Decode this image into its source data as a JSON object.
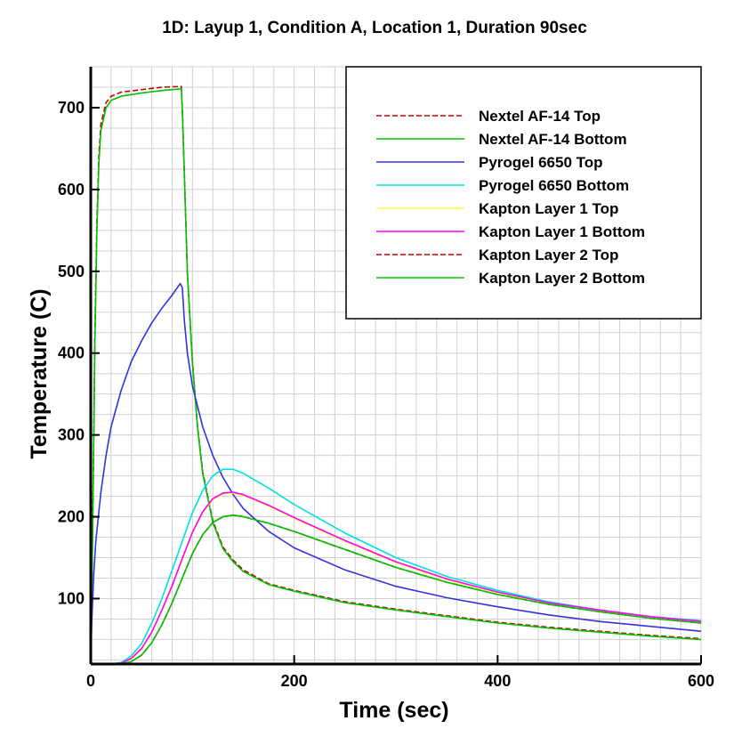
{
  "chart_data": {
    "type": "line",
    "title": "1D: Layup 1, Condition A, Location 1, Duration 90sec",
    "xlabel": "Time (sec)",
    "ylabel": "Temperature (C)",
    "xlim": [
      0,
      600
    ],
    "ylim": [
      20,
      750
    ],
    "xticks": [
      0,
      200,
      400,
      600
    ],
    "yticks": [
      100,
      200,
      300,
      400,
      500,
      600,
      700
    ],
    "x_minor_step": 20,
    "y_minor_step": 25,
    "grid": true,
    "legend_position": "top-right",
    "series": [
      {
        "name": "Nextel AF-14 Top",
        "color": "#c00000",
        "dash": "6,3",
        "points": [
          [
            0,
            20
          ],
          [
            2,
            200
          ],
          [
            4,
            420
          ],
          [
            6,
            560
          ],
          [
            8,
            640
          ],
          [
            10,
            680
          ],
          [
            15,
            706
          ],
          [
            20,
            714
          ],
          [
            30,
            719
          ],
          [
            50,
            722
          ],
          [
            70,
            725
          ],
          [
            89,
            726
          ],
          [
            90,
            700
          ],
          [
            92,
            620
          ],
          [
            95,
            500
          ],
          [
            100,
            390
          ],
          [
            105,
            310
          ],
          [
            110,
            255
          ],
          [
            120,
            195
          ],
          [
            130,
            163
          ],
          [
            140,
            147
          ],
          [
            150,
            135
          ],
          [
            175,
            118
          ],
          [
            200,
            110
          ],
          [
            250,
            96
          ],
          [
            300,
            87
          ],
          [
            350,
            79
          ],
          [
            400,
            71
          ],
          [
            450,
            65
          ],
          [
            500,
            60
          ],
          [
            550,
            55
          ],
          [
            600,
            51
          ]
        ]
      },
      {
        "name": "Nextel AF-14 Bottom",
        "color": "#00c000",
        "dash": "",
        "points": [
          [
            0,
            20
          ],
          [
            2,
            190
          ],
          [
            4,
            410
          ],
          [
            6,
            550
          ],
          [
            8,
            632
          ],
          [
            10,
            672
          ],
          [
            15,
            700
          ],
          [
            20,
            709
          ],
          [
            30,
            714
          ],
          [
            50,
            718
          ],
          [
            70,
            721
          ],
          [
            89,
            723
          ],
          [
            90,
            698
          ],
          [
            92,
            618
          ],
          [
            95,
            498
          ],
          [
            100,
            388
          ],
          [
            105,
            308
          ],
          [
            110,
            253
          ],
          [
            120,
            193
          ],
          [
            130,
            161
          ],
          [
            140,
            145
          ],
          [
            150,
            133
          ],
          [
            175,
            117
          ],
          [
            200,
            109
          ],
          [
            250,
            95
          ],
          [
            300,
            86
          ],
          [
            350,
            78
          ],
          [
            400,
            70
          ],
          [
            450,
            64
          ],
          [
            500,
            59
          ],
          [
            550,
            54
          ],
          [
            600,
            50
          ]
        ]
      },
      {
        "name": "Pyrogel 6650 Top",
        "color": "#3333dd",
        "dash": "",
        "points": [
          [
            0,
            20
          ],
          [
            1,
            70
          ],
          [
            3,
            130
          ],
          [
            5,
            170
          ],
          [
            10,
            230
          ],
          [
            15,
            275
          ],
          [
            20,
            310
          ],
          [
            30,
            355
          ],
          [
            40,
            390
          ],
          [
            50,
            415
          ],
          [
            60,
            437
          ],
          [
            70,
            455
          ],
          [
            80,
            471
          ],
          [
            88,
            485
          ],
          [
            90,
            480
          ],
          [
            92,
            440
          ],
          [
            95,
            400
          ],
          [
            100,
            360
          ],
          [
            110,
            310
          ],
          [
            120,
            275
          ],
          [
            130,
            248
          ],
          [
            140,
            227
          ],
          [
            150,
            210
          ],
          [
            175,
            182
          ],
          [
            200,
            162
          ],
          [
            250,
            135
          ],
          [
            300,
            115
          ],
          [
            350,
            101
          ],
          [
            400,
            90
          ],
          [
            450,
            80
          ],
          [
            500,
            72
          ],
          [
            550,
            66
          ],
          [
            600,
            60
          ]
        ]
      },
      {
        "name": "Pyrogel 6650 Bottom",
        "color": "#00e0e0",
        "dash": "",
        "points": [
          [
            0,
            20
          ],
          [
            20,
            20
          ],
          [
            30,
            22
          ],
          [
            40,
            30
          ],
          [
            50,
            45
          ],
          [
            60,
            70
          ],
          [
            70,
            100
          ],
          [
            80,
            135
          ],
          [
            90,
            170
          ],
          [
            100,
            205
          ],
          [
            110,
            232
          ],
          [
            120,
            250
          ],
          [
            130,
            258
          ],
          [
            140,
            258
          ],
          [
            150,
            253
          ],
          [
            175,
            235
          ],
          [
            200,
            215
          ],
          [
            250,
            180
          ],
          [
            300,
            150
          ],
          [
            350,
            127
          ],
          [
            400,
            110
          ],
          [
            450,
            96
          ],
          [
            500,
            86
          ],
          [
            550,
            78
          ],
          [
            600,
            73
          ]
        ]
      },
      {
        "name": "Kapton Layer 1 Top",
        "color": "#ffff40",
        "dash": "",
        "points": [
          [
            0,
            20
          ],
          [
            20,
            20
          ],
          [
            30,
            21
          ],
          [
            40,
            26
          ],
          [
            50,
            38
          ],
          [
            60,
            58
          ],
          [
            70,
            85
          ],
          [
            80,
            115
          ],
          [
            90,
            148
          ],
          [
            100,
            180
          ],
          [
            110,
            205
          ],
          [
            120,
            221
          ],
          [
            130,
            228
          ],
          [
            140,
            229
          ],
          [
            150,
            226
          ],
          [
            175,
            213
          ],
          [
            200,
            198
          ],
          [
            250,
            170
          ],
          [
            300,
            144
          ],
          [
            350,
            123
          ],
          [
            400,
            107
          ],
          [
            450,
            94
          ],
          [
            500,
            85
          ],
          [
            550,
            77
          ],
          [
            600,
            71
          ]
        ]
      },
      {
        "name": "Kapton Layer 1 Bottom",
        "color": "#ff00ff",
        "dash": "",
        "points": [
          [
            0,
            20
          ],
          [
            20,
            20
          ],
          [
            30,
            21
          ],
          [
            40,
            27
          ],
          [
            50,
            39
          ],
          [
            60,
            59
          ],
          [
            70,
            86
          ],
          [
            80,
            116
          ],
          [
            90,
            149
          ],
          [
            100,
            181
          ],
          [
            110,
            206
          ],
          [
            120,
            222
          ],
          [
            130,
            229
          ],
          [
            140,
            230
          ],
          [
            150,
            227
          ],
          [
            175,
            214
          ],
          [
            200,
            199
          ],
          [
            250,
            171
          ],
          [
            300,
            145
          ],
          [
            350,
            124
          ],
          [
            400,
            108
          ],
          [
            450,
            95
          ],
          [
            500,
            86
          ],
          [
            550,
            78
          ],
          [
            600,
            72
          ]
        ]
      },
      {
        "name": "Kapton Layer 2 Top",
        "color": "#c00000",
        "dash": "6,3",
        "points": [
          [
            0,
            20
          ],
          [
            20,
            20
          ],
          [
            30,
            20
          ],
          [
            40,
            23
          ],
          [
            50,
            31
          ],
          [
            60,
            46
          ],
          [
            70,
            68
          ],
          [
            80,
            95
          ],
          [
            90,
            125
          ],
          [
            100,
            155
          ],
          [
            110,
            178
          ],
          [
            120,
            193
          ],
          [
            130,
            200
          ],
          [
            140,
            202
          ],
          [
            150,
            200
          ],
          [
            175,
            192
          ],
          [
            200,
            182
          ],
          [
            250,
            160
          ],
          [
            300,
            138
          ],
          [
            350,
            120
          ],
          [
            400,
            105
          ],
          [
            450,
            93
          ],
          [
            500,
            84
          ],
          [
            550,
            76
          ],
          [
            600,
            70
          ]
        ]
      },
      {
        "name": "Kapton Layer 2 Bottom",
        "color": "#00c000",
        "dash": "",
        "points": [
          [
            0,
            20
          ],
          [
            20,
            20
          ],
          [
            30,
            20
          ],
          [
            40,
            23
          ],
          [
            50,
            31
          ],
          [
            60,
            46
          ],
          [
            70,
            68
          ],
          [
            80,
            95
          ],
          [
            90,
            125
          ],
          [
            100,
            155
          ],
          [
            110,
            178
          ],
          [
            120,
            193
          ],
          [
            130,
            200
          ],
          [
            140,
            202
          ],
          [
            150,
            200
          ],
          [
            175,
            192
          ],
          [
            200,
            182
          ],
          [
            250,
            160
          ],
          [
            300,
            138
          ],
          [
            350,
            120
          ],
          [
            400,
            105
          ],
          [
            450,
            93
          ],
          [
            500,
            84
          ],
          [
            550,
            76
          ],
          [
            600,
            70
          ]
        ]
      }
    ]
  }
}
